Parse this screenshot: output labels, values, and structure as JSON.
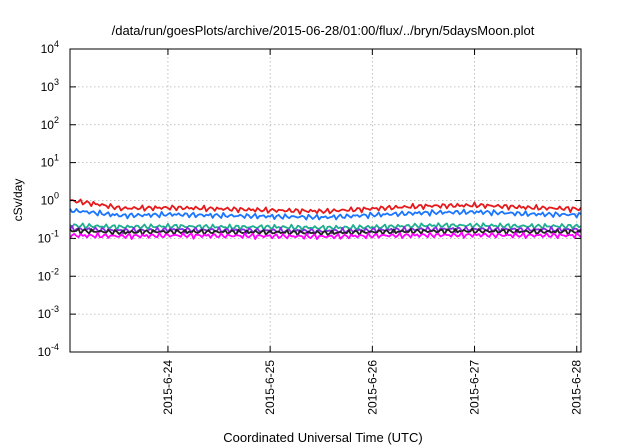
{
  "chart_data": {
    "type": "line",
    "title": "/data/run/goesPlots/archive/2015-06-28/01:00/flux/../bryn/5daysMoon.plot",
    "xlabel": "Coordinated Universal Time (UTC)",
    "ylabel": "cSv/day",
    "xlim": [
      "2015-06-23T01:00",
      "2015-06-28T01:00"
    ],
    "ylim": [
      0.0001,
      10000
    ],
    "yscale": "log",
    "grid": true,
    "x_ticks": [
      {
        "label": "2015-6-24",
        "value": "2015-06-24T00:00"
      },
      {
        "label": "2015-6-25",
        "value": "2015-06-25T00:00"
      },
      {
        "label": "2015-6-26",
        "value": "2015-06-26T00:00"
      },
      {
        "label": "2015-6-27",
        "value": "2015-06-27T00:00"
      },
      {
        "label": "2015-6-28",
        "value": "2015-06-28T00:00"
      }
    ],
    "y_ticks": [
      {
        "base": "10",
        "exp": "4",
        "value": 10000
      },
      {
        "base": "10",
        "exp": "3",
        "value": 1000
      },
      {
        "base": "10",
        "exp": "2",
        "value": 100
      },
      {
        "base": "10",
        "exp": "1",
        "value": 10
      },
      {
        "base": "10",
        "exp": "0",
        "value": 1
      },
      {
        "base": "10",
        "exp": "-1",
        "value": 0.1
      },
      {
        "base": "10",
        "exp": "-2",
        "value": 0.01
      },
      {
        "base": "10",
        "exp": "-3",
        "value": 0.001
      },
      {
        "base": "10",
        "exp": "-4",
        "value": 0.0001
      }
    ],
    "series": [
      {
        "color": "#e41a1c",
        "x": [
          "2015-06-23T01:00",
          "2015-06-23T13:00",
          "2015-06-24T01:00",
          "2015-06-24T13:00",
          "2015-06-25T01:00",
          "2015-06-25T13:00",
          "2015-06-26T01:00",
          "2015-06-26T13:00",
          "2015-06-27T01:00",
          "2015-06-27T13:00",
          "2015-06-28T01:00"
        ],
        "y": [
          1.0,
          0.62,
          0.65,
          0.6,
          0.55,
          0.52,
          0.62,
          0.72,
          0.75,
          0.65,
          0.6
        ]
      },
      {
        "color": "#1a75ff",
        "x": [
          "2015-06-23T01:00",
          "2015-06-23T13:00",
          "2015-06-24T01:00",
          "2015-06-24T13:00",
          "2015-06-25T01:00",
          "2015-06-25T13:00",
          "2015-06-26T01:00",
          "2015-06-26T13:00",
          "2015-06-27T01:00",
          "2015-06-27T13:00",
          "2015-06-28T01:00"
        ],
        "y": [
          0.55,
          0.4,
          0.43,
          0.4,
          0.38,
          0.36,
          0.42,
          0.48,
          0.5,
          0.44,
          0.42
        ]
      },
      {
        "color": "#1fae8f",
        "x": [
          "2015-06-23T01:00",
          "2015-06-23T13:00",
          "2015-06-24T01:00",
          "2015-06-24T13:00",
          "2015-06-25T01:00",
          "2015-06-25T13:00",
          "2015-06-26T01:00",
          "2015-06-26T13:00",
          "2015-06-27T01:00",
          "2015-06-27T13:00",
          "2015-06-28T01:00"
        ],
        "y": [
          0.22,
          0.2,
          0.21,
          0.2,
          0.2,
          0.19,
          0.2,
          0.22,
          0.22,
          0.21,
          0.21
        ]
      },
      {
        "color": "#8a2be2",
        "x": [
          "2015-06-23T01:00",
          "2015-06-23T13:00",
          "2015-06-24T01:00",
          "2015-06-24T13:00",
          "2015-06-25T01:00",
          "2015-06-25T13:00",
          "2015-06-26T01:00",
          "2015-06-26T13:00",
          "2015-06-27T01:00",
          "2015-06-27T13:00",
          "2015-06-28T01:00"
        ],
        "y": [
          0.18,
          0.16,
          0.17,
          0.165,
          0.16,
          0.155,
          0.165,
          0.175,
          0.175,
          0.17,
          0.17
        ]
      },
      {
        "color": "#222222",
        "x": [
          "2015-06-23T01:00",
          "2015-06-23T13:00",
          "2015-06-24T01:00",
          "2015-06-24T13:00",
          "2015-06-25T01:00",
          "2015-06-25T13:00",
          "2015-06-26T01:00",
          "2015-06-26T13:00",
          "2015-06-27T01:00",
          "2015-06-27T13:00",
          "2015-06-28T01:00"
        ],
        "y": [
          0.16,
          0.145,
          0.15,
          0.148,
          0.145,
          0.14,
          0.148,
          0.155,
          0.156,
          0.15,
          0.15
        ]
      },
      {
        "color": "#ff00ff",
        "x": [
          "2015-06-23T01:00",
          "2015-06-23T13:00",
          "2015-06-24T01:00",
          "2015-06-24T13:00",
          "2015-06-25T01:00",
          "2015-06-25T13:00",
          "2015-06-26T01:00",
          "2015-06-26T13:00",
          "2015-06-27T01:00",
          "2015-06-27T13:00",
          "2015-06-28T01:00"
        ],
        "y": [
          0.12,
          0.115,
          0.12,
          0.118,
          0.115,
          0.112,
          0.118,
          0.122,
          0.123,
          0.12,
          0.12
        ]
      }
    ]
  }
}
